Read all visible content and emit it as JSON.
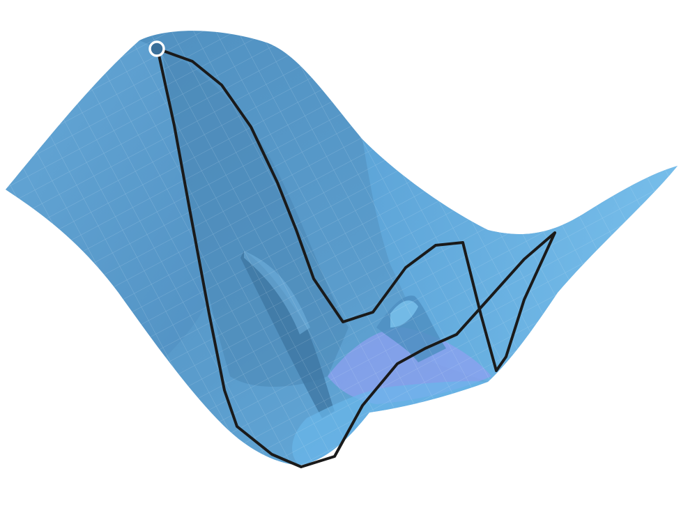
{
  "colors": {
    "background": "#ffffff",
    "surface_main": "#5c9fcf",
    "surface_dark": "#4a86b4",
    "surface_shadow": "#3f77a3",
    "surface_light": "#6fb6e6",
    "surface_bright": "#78c0ee",
    "surface_valley": "#8ea0f0",
    "mesh_line": "#cfe4f4",
    "path_stroke": "#1a1a1a",
    "start_fill": "#3a6f9a",
    "start_ring": "#ffffff"
  },
  "scene": {
    "kind": "3d-loss-surface",
    "has_optimizer_path": true,
    "start_marker_icon": "start-point-icon"
  }
}
